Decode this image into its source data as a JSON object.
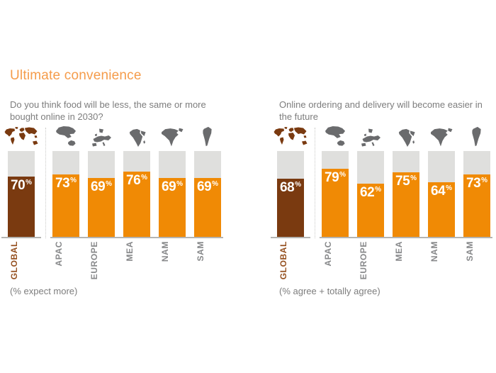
{
  "title": "Ultimate convenience",
  "unit_suffix": "%",
  "colors": {
    "title_orange": "#F59C4B",
    "bar_orange": "#F08A05",
    "bar_brown": "#7A3A10",
    "track_grey": "#DFDFDD",
    "text_grey": "#7D7D7D",
    "label_grey": "#87888A",
    "global_label_brown": "#95501F",
    "baseline_grey": "#B4B4B2",
    "divider_grey": "#C9C9C7",
    "icon_grey": "#6A6B6D"
  },
  "panels": [
    {
      "question": "Do you think food will be less, the same or more bought online in 2030?",
      "footnote": "(% expect more)",
      "bars": [
        {
          "label": "GLOBAL",
          "value": 70,
          "icon": "world-map-icon",
          "highlight": true
        },
        {
          "label": "APAC",
          "value": 73,
          "icon": "asia-pacific-map-icon",
          "highlight": false
        },
        {
          "label": "EUROPE",
          "value": 69,
          "icon": "europe-map-icon",
          "highlight": false
        },
        {
          "label": "MEA",
          "value": 76,
          "icon": "africa-middle-east-map-icon",
          "highlight": false
        },
        {
          "label": "NAM",
          "value": 69,
          "icon": "north-america-map-icon",
          "highlight": false
        },
        {
          "label": "SAM",
          "value": 69,
          "icon": "south-america-map-icon",
          "highlight": false
        }
      ]
    },
    {
      "question": "Online ordering and delivery will become easier in the future",
      "footnote": "(% agree + totally agree)",
      "bars": [
        {
          "label": "GLOBAL",
          "value": 68,
          "icon": "world-map-icon",
          "highlight": true
        },
        {
          "label": "APAC",
          "value": 79,
          "icon": "asia-pacific-map-icon",
          "highlight": false
        },
        {
          "label": "EUROPE",
          "value": 62,
          "icon": "europe-map-icon",
          "highlight": false
        },
        {
          "label": "MEA",
          "value": 75,
          "icon": "africa-middle-east-map-icon",
          "highlight": false
        },
        {
          "label": "NAM",
          "value": 64,
          "icon": "north-america-map-icon",
          "highlight": false
        },
        {
          "label": "SAM",
          "value": 73,
          "icon": "south-america-map-icon",
          "highlight": false
        }
      ]
    }
  ],
  "chart_data": [
    {
      "type": "bar",
      "title": "Do you think food will be less, the same or more bought online in 2030?",
      "categories": [
        "GLOBAL",
        "APAC",
        "EUROPE",
        "MEA",
        "NAM",
        "SAM"
      ],
      "values": [
        70,
        73,
        69,
        76,
        69,
        69
      ],
      "unit": "%",
      "ylim": [
        0,
        100
      ],
      "footnote": "(% expect more)",
      "bar_colors": [
        "#7A3A10",
        "#F08A05",
        "#F08A05",
        "#F08A05",
        "#F08A05",
        "#F08A05"
      ],
      "track_color": "#DFDFDD",
      "value_labels": true,
      "grid": false,
      "legend": false
    },
    {
      "type": "bar",
      "title": "Online ordering and delivery will become easier in the future",
      "categories": [
        "GLOBAL",
        "APAC",
        "EUROPE",
        "MEA",
        "NAM",
        "SAM"
      ],
      "values": [
        68,
        79,
        62,
        75,
        64,
        73
      ],
      "unit": "%",
      "ylim": [
        0,
        100
      ],
      "footnote": "(% agree + totally agree)",
      "bar_colors": [
        "#7A3A10",
        "#F08A05",
        "#F08A05",
        "#F08A05",
        "#F08A05",
        "#F08A05"
      ],
      "track_color": "#DFDFDD",
      "value_labels": true,
      "grid": false,
      "legend": false
    }
  ]
}
